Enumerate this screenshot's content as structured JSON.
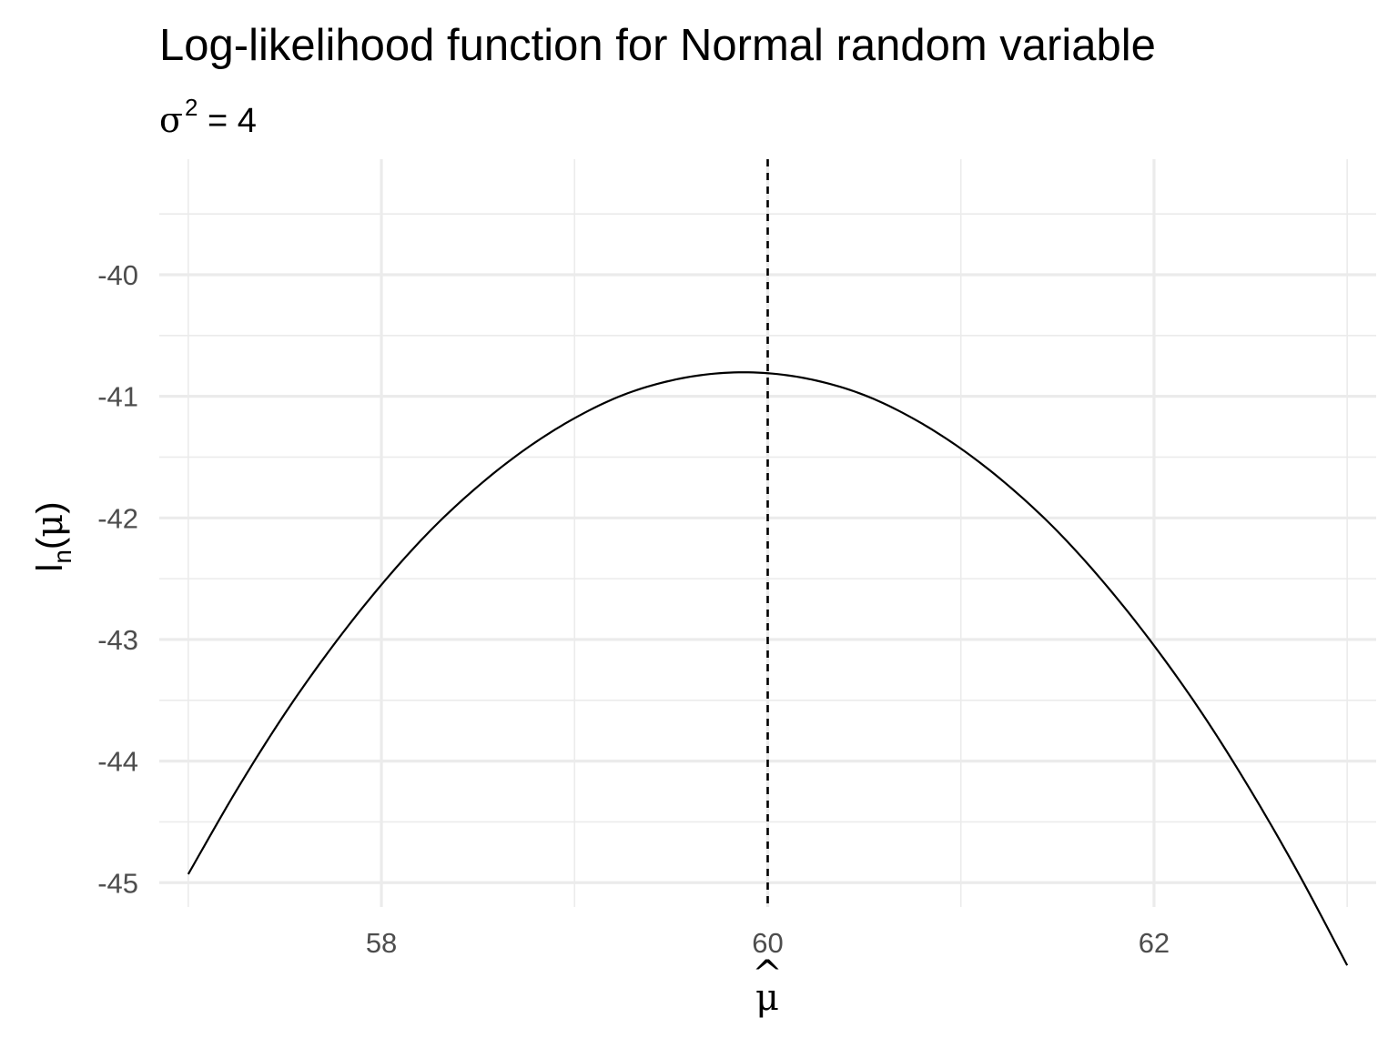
{
  "chart_data": {
    "type": "line",
    "title": "Log-likelihood function for Normal random variable",
    "subtitle": {
      "symbol": "σ",
      "superscript": "2",
      "rest": " = 4"
    },
    "xlabel": {
      "symbol": "μ",
      "hat": "^"
    },
    "ylabel": {
      "base": "l",
      "subscript": "n",
      "open": "(",
      "symbol": "μ",
      "close": ")"
    },
    "xlim": [
      56.85,
      63.15
    ],
    "ylim": [
      -45.2,
      -39.05
    ],
    "x_ticks": [
      58,
      60,
      62
    ],
    "x_tick_labels": [
      "58",
      "60",
      "62"
    ],
    "x_minor_ticks": [
      57,
      59,
      61,
      63
    ],
    "y_ticks": [
      -45,
      -44,
      -43,
      -42,
      -41,
      -40
    ],
    "y_tick_labels": [
      "-45",
      "-44",
      "-43",
      "-42",
      "-41",
      "-40"
    ],
    "y_minor_ticks": [
      -44.5,
      -43.5,
      -42.5,
      -41.5,
      -40.5,
      -39.5
    ],
    "series": [
      {
        "x": [
          57.0,
          57.25,
          57.5,
          57.75,
          58.0,
          58.25,
          58.5,
          58.75,
          59.0,
          59.25,
          59.5,
          59.75,
          60.0,
          60.25,
          60.5,
          60.75,
          61.0,
          61.25,
          61.5,
          61.75,
          62.0,
          62.25,
          62.5,
          62.75,
          63.0
        ],
        "y": [
          -44.93,
          -44.24,
          -43.61,
          -43.05,
          -42.55,
          -42.11,
          -41.74,
          -41.43,
          -41.18,
          -40.99,
          -40.87,
          -40.81,
          -40.81,
          -40.87,
          -40.99,
          -41.18,
          -41.43,
          -41.74,
          -42.11,
          -42.55,
          -43.05,
          -43.61,
          -44.24,
          -44.93,
          -45.68
        ]
      }
    ],
    "vline": {
      "x": 60
    },
    "grid": true,
    "legend": "none"
  }
}
